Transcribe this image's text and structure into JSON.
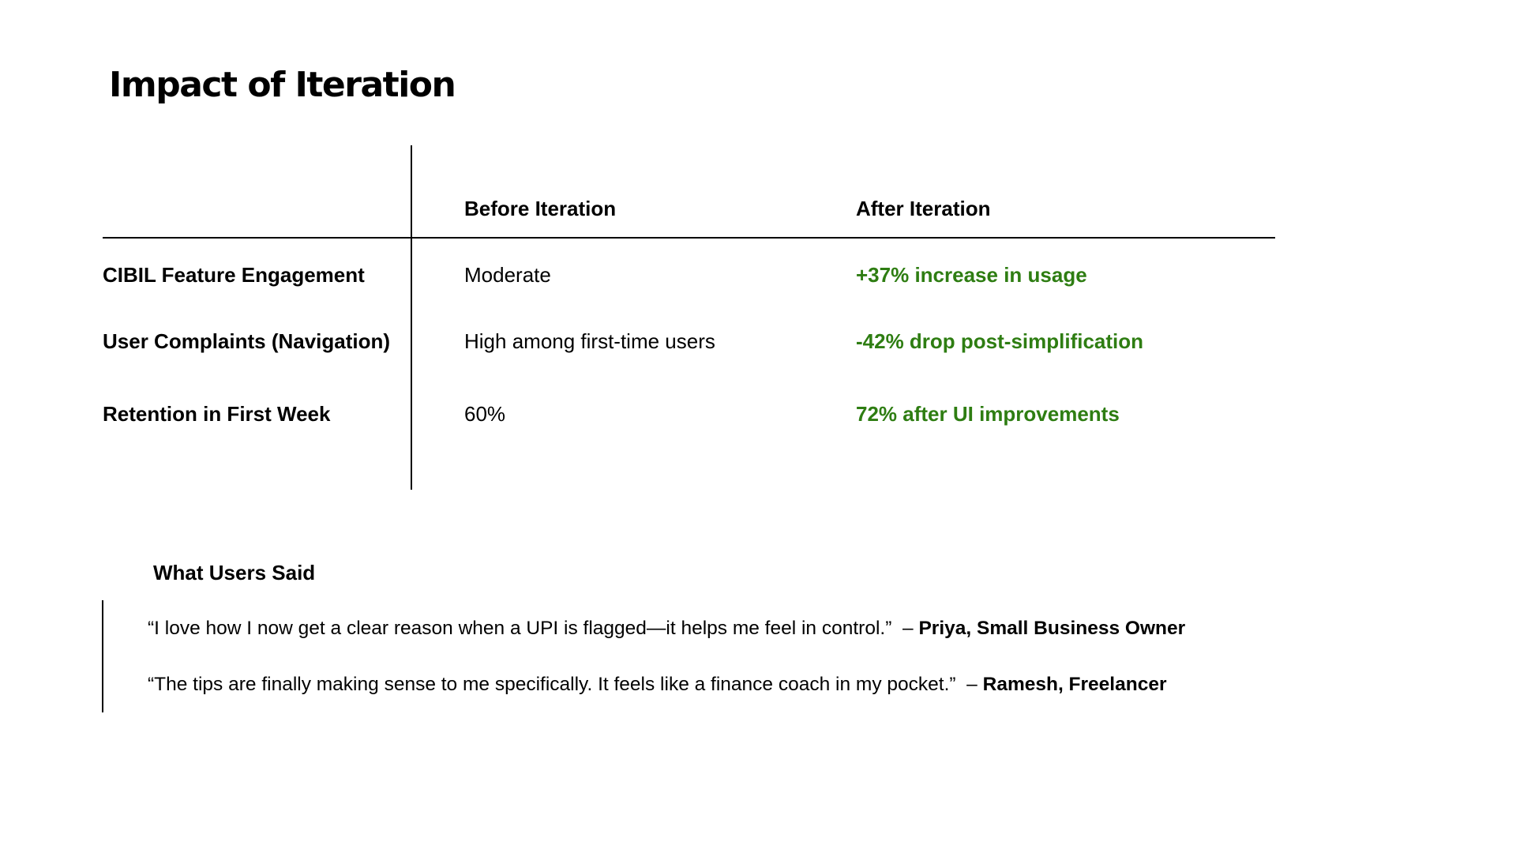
{
  "title": "Impact of Iteration",
  "colors": {
    "text": "#000000",
    "positive": "#2e7d12",
    "background": "#ffffff"
  },
  "table": {
    "headers": {
      "before": "Before Iteration",
      "after": "After Iteration"
    },
    "rows": [
      {
        "metric": "CIBIL Feature Engagement",
        "before": "Moderate",
        "after": "+37% increase in usage"
      },
      {
        "metric": "User Complaints (Navigation)",
        "before": "High among first-time users",
        "after": "-42% drop post-simplification"
      },
      {
        "metric": "Retention in First Week",
        "before": "60%",
        "after": "72% after UI improvements"
      }
    ]
  },
  "testimonials": {
    "heading": "What Users Said",
    "quotes": [
      {
        "text": "“I love how I now get a clear reason when a UPI is flagged—it helps me feel in control.”",
        "dash": "–",
        "author": "Priya, Small Business Owner"
      },
      {
        "text": "“The tips are finally making sense to me specifically. It feels like a finance coach in my pocket.”",
        "dash": "–",
        "author": "Ramesh, Freelancer"
      }
    ]
  }
}
